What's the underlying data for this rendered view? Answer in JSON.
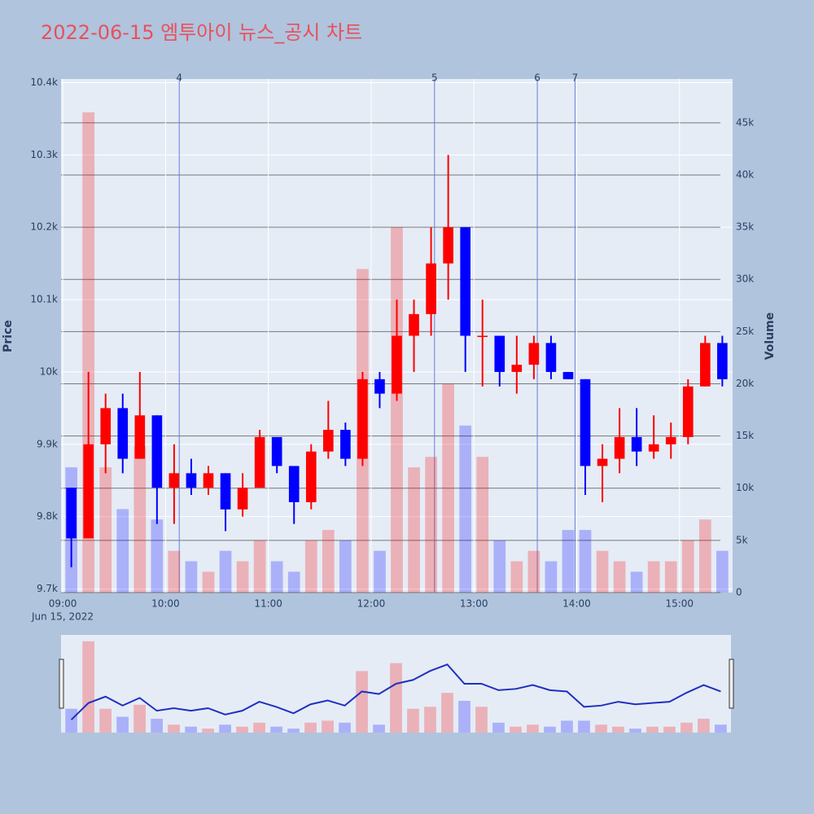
{
  "chart_data": {
    "type": "candlestick",
    "title": "2022-06-15 엠투아이 뉴스_공시 차트",
    "y_title": "Price",
    "y2_title": "Volume",
    "x_date_label": "Jun 15, 2022",
    "increasing_color": "#ff0000",
    "decreasing_color": "#0000ff",
    "x": [
      "09:00",
      "09:10",
      "09:20",
      "09:30",
      "09:40",
      "09:50",
      "10:00",
      "10:10",
      "10:20",
      "10:30",
      "10:40",
      "10:50",
      "11:00",
      "11:10",
      "11:20",
      "11:30",
      "11:40",
      "11:50",
      "12:00",
      "12:10",
      "12:20",
      "12:30",
      "12:40",
      "12:50",
      "13:00",
      "13:10",
      "13:20",
      "13:30",
      "13:40",
      "13:50",
      "14:00",
      "14:10",
      "14:20",
      "14:30",
      "14:40",
      "14:50",
      "15:00",
      "15:10",
      "15:20"
    ],
    "open": [
      9840,
      9770,
      9900,
      9950,
      9880,
      9940,
      9840,
      9860,
      9840,
      9860,
      9810,
      9840,
      9910,
      9870,
      9820,
      9890,
      9920,
      9880,
      9990,
      9970,
      10050,
      10080,
      10150,
      10200,
      10050,
      10050,
      10000,
      10010,
      10040,
      10000,
      9990,
      9870,
      9880,
      9910,
      9890,
      9900,
      9910,
      9980,
      10040
    ],
    "high": [
      9840,
      10000,
      9970,
      9970,
      10000,
      9940,
      9900,
      9880,
      9870,
      9860,
      9860,
      9920,
      9910,
      9870,
      9900,
      9960,
      9930,
      10000,
      10000,
      10100,
      10100,
      10200,
      10300,
      10200,
      10100,
      10050,
      10050,
      10050,
      10050,
      10000,
      9990,
      9900,
      9950,
      9950,
      9940,
      9930,
      9990,
      10050,
      10050
    ],
    "low": [
      9730,
      9770,
      9860,
      9860,
      9880,
      9790,
      9790,
      9830,
      9830,
      9780,
      9800,
      9840,
      9860,
      9790,
      9810,
      9880,
      9870,
      9870,
      9950,
      9960,
      10000,
      10050,
      10100,
      10000,
      9980,
      9980,
      9970,
      9990,
      9990,
      9990,
      9830,
      9820,
      9860,
      9870,
      9880,
      9880,
      9900,
      9980,
      9980
    ],
    "close": [
      9770,
      9900,
      9950,
      9880,
      9940,
      9840,
      9860,
      9840,
      9860,
      9810,
      9840,
      9910,
      9870,
      9820,
      9890,
      9920,
      9880,
      9990,
      9970,
      10050,
      10080,
      10150,
      10200,
      10050,
      10050,
      10000,
      10010,
      10040,
      10000,
      9990,
      9870,
      9880,
      9910,
      9890,
      9900,
      9910,
      9980,
      10040,
      9990
    ],
    "volume": [
      12000,
      46000,
      12000,
      8000,
      14000,
      7000,
      4000,
      3000,
      2000,
      4000,
      3000,
      5000,
      3000,
      2000,
      5000,
      6000,
      5000,
      31000,
      4000,
      35000,
      12000,
      13000,
      20000,
      16000,
      13000,
      5000,
      3000,
      4000,
      3000,
      6000,
      6000,
      4000,
      3000,
      2000,
      3000,
      3000,
      5000,
      7000,
      4000
    ],
    "xlim": [
      "08:59",
      "15:31"
    ],
    "xticks": [
      "09:00",
      "10:00",
      "11:00",
      "12:00",
      "13:00",
      "14:00",
      "15:00"
    ],
    "ylim": [
      9695,
      10405
    ],
    "yticks": [
      {
        "value": 9700,
        "label": "9.7k"
      },
      {
        "value": 9800,
        "label": "9.8k"
      },
      {
        "value": 9900,
        "label": "9.9k"
      },
      {
        "value": 10000,
        "label": "10k"
      },
      {
        "value": 10100,
        "label": "10.1k"
      },
      {
        "value": 10200,
        "label": "10.2k"
      },
      {
        "value": 10300,
        "label": "10.3k"
      },
      {
        "value": 10400,
        "label": "10.4k"
      }
    ],
    "y2lim": [
      0,
      49200
    ],
    "y2ticks": [
      0,
      {
        "value": 5000,
        "label": "5k"
      },
      {
        "value": 10000,
        "label": "10k"
      },
      {
        "value": 15000,
        "label": "15k"
      },
      {
        "value": 20000,
        "label": "20k"
      },
      {
        "value": 25000,
        "label": "25k"
      },
      {
        "value": 30000,
        "label": "30k"
      },
      {
        "value": 35000,
        "label": "35k"
      },
      {
        "value": 40000,
        "label": "40k"
      },
      {
        "value": 45000,
        "label": "45k"
      }
    ],
    "news_markers": [
      {
        "x": "10:08",
        "label": "4"
      },
      {
        "x": "12:37",
        "label": "5"
      },
      {
        "x": "13:37",
        "label": "6"
      },
      {
        "x": "13:59",
        "label": "7"
      }
    ],
    "grid": true
  }
}
